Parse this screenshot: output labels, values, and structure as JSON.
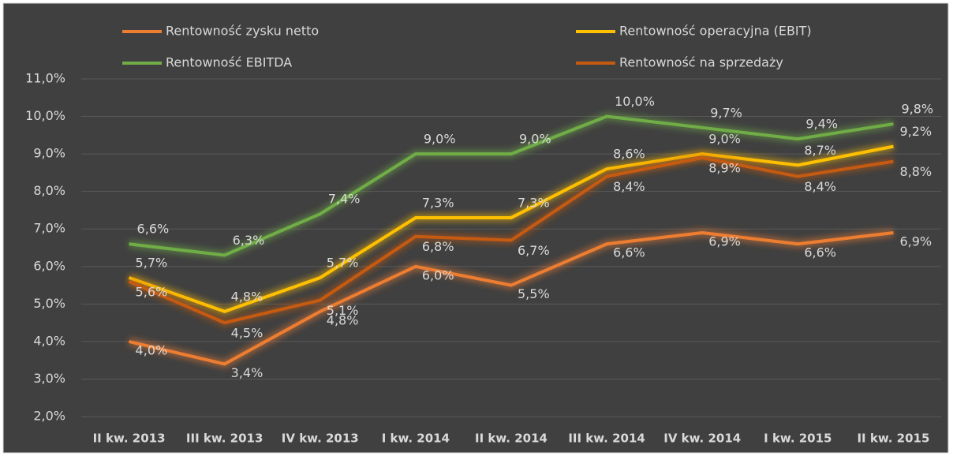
{
  "chart_data": {
    "type": "line",
    "categories": [
      "II kw. 2013",
      "III kw. 2013",
      "IV kw. 2013",
      "I kw. 2014",
      "II kw. 2014",
      "III kw. 2014",
      "IV kw. 2014",
      "I kw. 2015",
      "II kw. 2015"
    ],
    "series": [
      {
        "name": "Rentowność zysku netto",
        "color": "#ed7d31",
        "values": [
          4.0,
          3.4,
          4.8,
          6.0,
          5.5,
          6.6,
          6.9,
          6.6,
          6.9
        ],
        "value_labels": [
          "4,0%",
          "3,4%",
          "4,8%",
          "6,0%",
          "5,5%",
          "6,6%",
          "6,9%",
          "6,6%",
          "6,9%"
        ]
      },
      {
        "name": "Rentowność operacyjna (EBIT)",
        "color": "#ffc000",
        "values": [
          5.7,
          4.8,
          5.7,
          7.3,
          7.3,
          8.6,
          9.0,
          8.7,
          9.2
        ],
        "value_labels": [
          "5,7%",
          "4,8%",
          "5,7%",
          "7,3%",
          "7,3%",
          "8,6%",
          "9,0%",
          "8,7%",
          "9,2%"
        ]
      },
      {
        "name": "Rentowność EBITDA",
        "color": "#70ad47",
        "values": [
          6.6,
          6.3,
          7.4,
          9.0,
          9.0,
          10.0,
          9.7,
          9.4,
          9.8
        ],
        "value_labels": [
          "6,6%",
          "6,3%",
          "7,4%",
          "9,0%",
          "9,0%",
          "10,0%",
          "9,7%",
          "9,4%",
          "9,8%"
        ]
      },
      {
        "name": "Rentowność na sprzedaży",
        "color": "#c55a11",
        "values": [
          5.6,
          4.5,
          5.1,
          6.8,
          6.7,
          8.4,
          8.9,
          8.4,
          8.8
        ],
        "value_labels": [
          "5,6%",
          "4,5%",
          "5,1%",
          "6,8%",
          "6,7%",
          "8,4%",
          "8,9%",
          "8,4%",
          "8,8%"
        ]
      }
    ],
    "ylim": [
      2.0,
      11.0
    ],
    "yticks": [
      {
        "value": 2.0,
        "label": "2,0%"
      },
      {
        "value": 3.0,
        "label": "3,0%"
      },
      {
        "value": 4.0,
        "label": "4,0%"
      },
      {
        "value": 5.0,
        "label": "5,0%"
      },
      {
        "value": 6.0,
        "label": "6,0%"
      },
      {
        "value": 7.0,
        "label": "7,0%"
      },
      {
        "value": 8.0,
        "label": "8,0%"
      },
      {
        "value": 9.0,
        "label": "9,0%"
      },
      {
        "value": 10.0,
        "label": "10,0%"
      },
      {
        "value": 11.0,
        "label": "11,0%"
      }
    ],
    "grid": true
  }
}
